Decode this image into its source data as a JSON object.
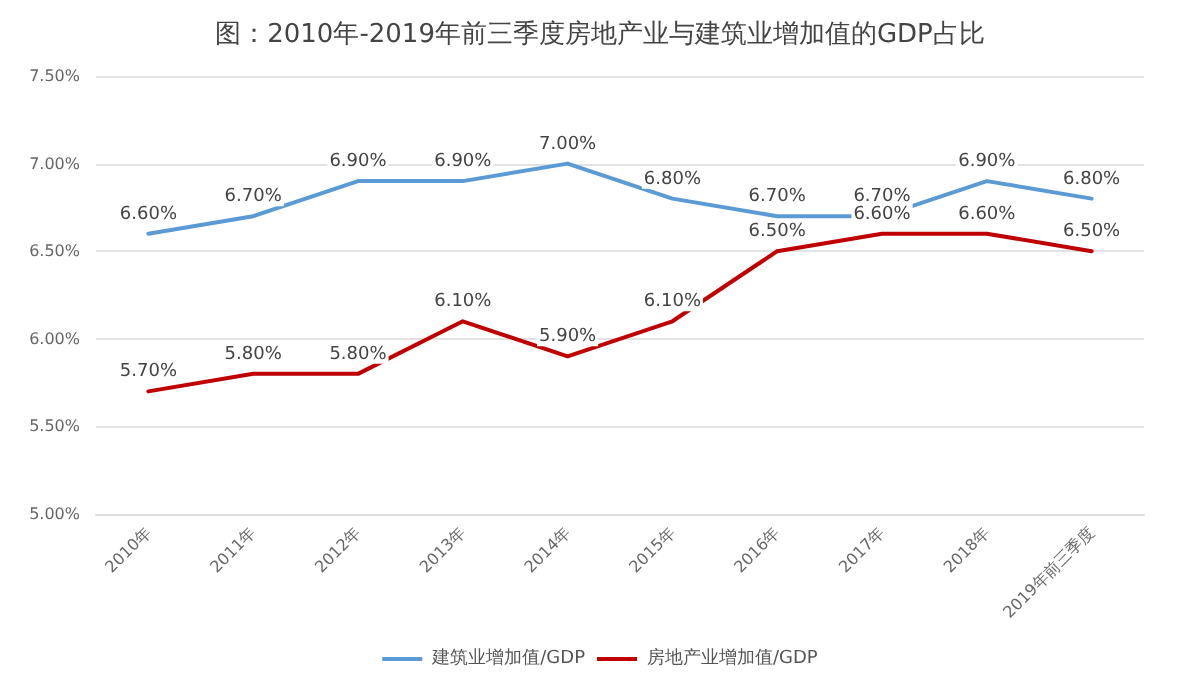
{
  "chart_data": {
    "type": "line",
    "title": "图：2010年-2019年前三季度房地产业与建筑业增加值的GDP占比",
    "categories": [
      "2010年",
      "2011年",
      "2012年",
      "2013年",
      "2014年",
      "2015年",
      "2016年",
      "2017年",
      "2018年",
      "2019年前三季度"
    ],
    "series": [
      {
        "name": "建筑业增加值/GDP",
        "color": "#5b9bd5",
        "values": [
          6.6,
          6.7,
          6.9,
          6.9,
          7.0,
          6.8,
          6.7,
          6.7,
          6.9,
          6.8
        ],
        "value_labels": [
          "6.60%",
          "6.70%",
          "6.90%",
          "6.90%",
          "7.00%",
          "6.80%",
          "6.70%",
          "6.70%",
          "6.90%",
          "6.80%"
        ]
      },
      {
        "name": "房地产业增加值/GDP",
        "color": "#c00000",
        "values": [
          5.7,
          5.8,
          5.8,
          6.1,
          5.9,
          6.1,
          6.5,
          6.6,
          6.6,
          6.5
        ],
        "value_labels": [
          "5.70%",
          "5.80%",
          "5.80%",
          "6.10%",
          "5.90%",
          "6.10%",
          "6.50%",
          "6.60%",
          "6.60%",
          "6.50%"
        ]
      }
    ],
    "ylim": [
      5.0,
      7.5
    ],
    "yticks": [
      {
        "value": 5.0,
        "label": "5.00%"
      },
      {
        "value": 5.5,
        "label": "5.50%"
      },
      {
        "value": 6.0,
        "label": "6.00%"
      },
      {
        "value": 6.5,
        "label": "6.50%"
      },
      {
        "value": 7.0,
        "label": "7.00%"
      },
      {
        "value": 7.5,
        "label": "7.50%"
      }
    ],
    "grid": "y",
    "legend": "bottom",
    "marker": "none",
    "line_style": "solid"
  }
}
